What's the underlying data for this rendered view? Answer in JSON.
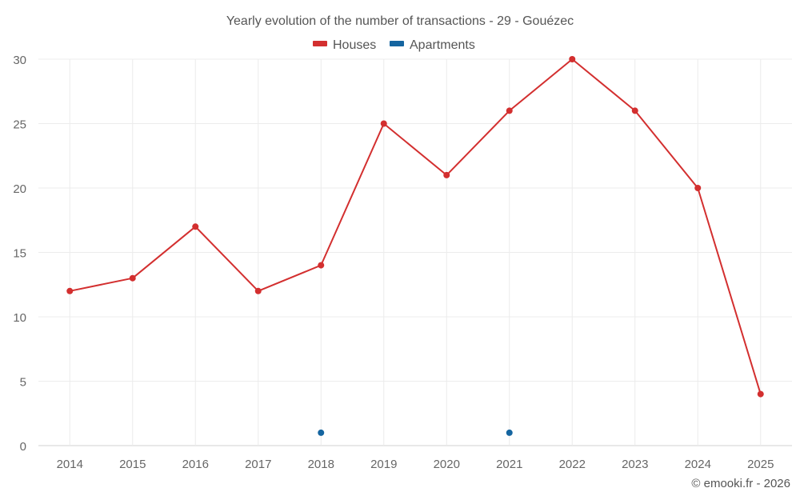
{
  "chart_data": {
    "type": "line",
    "title": "Yearly evolution of the number of transactions - 29 - Gouézec",
    "x": [
      "2014",
      "2015",
      "2016",
      "2017",
      "2018",
      "2019",
      "2020",
      "2021",
      "2022",
      "2023",
      "2024",
      "2025"
    ],
    "ylim": [
      0,
      30
    ],
    "yticks": [
      0,
      5,
      10,
      15,
      20,
      25,
      30
    ],
    "grid": true,
    "legend_position": "top-center",
    "series": [
      {
        "name": "Houses",
        "color": "#d32f2f",
        "style": "line-with-markers",
        "values": [
          12,
          13,
          17,
          12,
          14,
          25,
          21,
          26,
          30,
          26,
          20,
          4
        ]
      },
      {
        "name": "Apartments",
        "color": "#1565a0",
        "style": "markers",
        "values": [
          null,
          null,
          null,
          null,
          1,
          null,
          null,
          1,
          null,
          null,
          null,
          null
        ]
      }
    ]
  },
  "credit": "© emooki.fr - 2026"
}
